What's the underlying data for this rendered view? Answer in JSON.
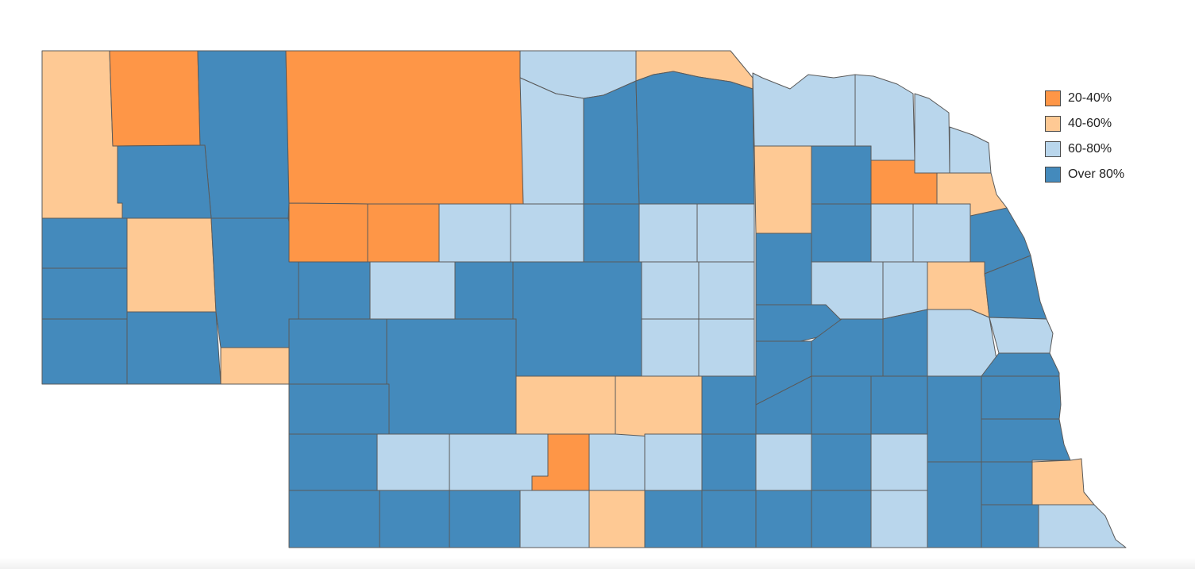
{
  "colors": {
    "c20_40": "#fe9647",
    "c40_60": "#fec994",
    "c60_80": "#b9d6ec",
    "over80": "#448abc"
  },
  "legend": {
    "items": [
      {
        "label": "20-40%",
        "color_key": "c20_40"
      },
      {
        "label": "40-60%",
        "color_key": "c40_60"
      },
      {
        "label": "60-80%",
        "color_key": "c60_80"
      },
      {
        "label": "Over 80%",
        "color_key": "over80"
      }
    ]
  },
  "counties": [
    {
      "name": "county-sioux",
      "cls": "c40_60"
    },
    {
      "name": "county-dawes",
      "cls": "c20_40"
    },
    {
      "name": "county-sheridan",
      "cls": "over80"
    },
    {
      "name": "county-cherry",
      "cls": "c20_40"
    },
    {
      "name": "county-keya-paha",
      "cls": "c60_80"
    },
    {
      "name": "county-boyd",
      "cls": "c40_60"
    },
    {
      "name": "county-box-butte",
      "cls": "over80"
    },
    {
      "name": "county-scotts-bluff",
      "cls": "over80"
    },
    {
      "name": "county-morrill",
      "cls": "c40_60"
    },
    {
      "name": "county-banner",
      "cls": "over80"
    },
    {
      "name": "county-kimball",
      "cls": "over80"
    },
    {
      "name": "county-cheyenne",
      "cls": "over80"
    },
    {
      "name": "county-garden",
      "cls": "over80"
    },
    {
      "name": "county-deuel",
      "cls": "c40_60"
    },
    {
      "name": "county-grant",
      "cls": "c20_40"
    },
    {
      "name": "county-hooker",
      "cls": "c20_40"
    },
    {
      "name": "county-arthur",
      "cls": "over80"
    },
    {
      "name": "county-keith",
      "cls": "over80"
    },
    {
      "name": "county-perkins",
      "cls": "over80"
    },
    {
      "name": "county-chase",
      "cls": "over80"
    },
    {
      "name": "county-dundy",
      "cls": "over80"
    },
    {
      "name": "county-hayes",
      "cls": "c40_60"
    },
    {
      "name": "county-hitchcock",
      "cls": "over80"
    },
    {
      "name": "county-brown",
      "cls": "c60_80"
    },
    {
      "name": "county-rock",
      "cls": "over80"
    },
    {
      "name": "county-holt",
      "cls": "over80"
    },
    {
      "name": "county-thomas",
      "cls": "c60_80"
    },
    {
      "name": "county-blaine",
      "cls": "c60_80"
    },
    {
      "name": "county-loup",
      "cls": "over80"
    },
    {
      "name": "county-garfield",
      "cls": "c60_80"
    },
    {
      "name": "county-wheeler",
      "cls": "c60_80"
    },
    {
      "name": "county-mcpherson",
      "cls": "c60_80"
    },
    {
      "name": "county-logan",
      "cls": "over80"
    },
    {
      "name": "county-custer",
      "cls": "over80"
    },
    {
      "name": "county-valley",
      "cls": "c60_80"
    },
    {
      "name": "county-greeley",
      "cls": "c60_80"
    },
    {
      "name": "county-sherman",
      "cls": "c60_80"
    },
    {
      "name": "county-howard",
      "cls": "c60_80"
    },
    {
      "name": "county-lincoln",
      "cls": "over80"
    },
    {
      "name": "county-frontier",
      "cls": "c60_80"
    },
    {
      "name": "county-gosper",
      "cls": "c60_80"
    },
    {
      "name": "county-furnas",
      "cls": "c60_80"
    },
    {
      "name": "county-red-willow",
      "cls": "over80"
    },
    {
      "name": "county-harlan",
      "cls": "c60_80"
    },
    {
      "name": "county-dawson",
      "cls": "c40_60"
    },
    {
      "name": "county-buffalo",
      "cls": "c40_60"
    },
    {
      "name": "county-phelps",
      "cls": "c20_40"
    },
    {
      "name": "county-kearney",
      "cls": "c60_80"
    },
    {
      "name": "county-franklin",
      "cls": "c40_60"
    },
    {
      "name": "county-knox",
      "cls": "c60_80"
    },
    {
      "name": "county-cedar",
      "cls": "c60_80"
    },
    {
      "name": "county-dixon",
      "cls": "c60_80"
    },
    {
      "name": "county-dakota",
      "cls": "c60_80"
    },
    {
      "name": "county-antelope",
      "cls": "c40_60"
    },
    {
      "name": "county-pierce",
      "cls": "over80"
    },
    {
      "name": "county-wayne",
      "cls": "c20_40"
    },
    {
      "name": "county-thurston",
      "cls": "c40_60"
    },
    {
      "name": "county-boone",
      "cls": "over80"
    },
    {
      "name": "county-madison",
      "cls": "over80"
    },
    {
      "name": "county-stanton",
      "cls": "c60_80"
    },
    {
      "name": "county-cuming",
      "cls": "c60_80"
    },
    {
      "name": "county-burt",
      "cls": "over80"
    },
    {
      "name": "county-platte",
      "cls": "c60_80"
    },
    {
      "name": "county-colfax",
      "cls": "c60_80"
    },
    {
      "name": "county-dodge",
      "cls": "c40_60"
    },
    {
      "name": "county-washington",
      "cls": "over80"
    },
    {
      "name": "county-nance",
      "cls": "over80"
    },
    {
      "name": "county-merrick",
      "cls": "over80"
    },
    {
      "name": "county-hall",
      "cls": "over80"
    },
    {
      "name": "county-hamilton",
      "cls": "over80"
    },
    {
      "name": "county-polk",
      "cls": "over80"
    },
    {
      "name": "county-york",
      "cls": "over80"
    },
    {
      "name": "county-butler",
      "cls": "over80"
    },
    {
      "name": "county-seward",
      "cls": "over80"
    },
    {
      "name": "county-saunders",
      "cls": "c60_80"
    },
    {
      "name": "county-douglas",
      "cls": "c60_80"
    },
    {
      "name": "county-sarpy",
      "cls": "over80"
    },
    {
      "name": "county-lancaster",
      "cls": "over80"
    },
    {
      "name": "county-cass",
      "cls": "over80"
    },
    {
      "name": "county-otoe",
      "cls": "over80"
    },
    {
      "name": "county-adams",
      "cls": "over80"
    },
    {
      "name": "county-clay",
      "cls": "c60_80"
    },
    {
      "name": "county-fillmore",
      "cls": "c60_80"
    },
    {
      "name": "county-saline",
      "cls": "over80"
    },
    {
      "name": "county-webster",
      "cls": "over80"
    },
    {
      "name": "county-nuckolls",
      "cls": "over80"
    },
    {
      "name": "county-thayer",
      "cls": "over80"
    },
    {
      "name": "county-jefferson",
      "cls": "over80"
    },
    {
      "name": "county-gage",
      "cls": "over80"
    },
    {
      "name": "county-johnson",
      "cls": "over80"
    },
    {
      "name": "county-nemaha",
      "cls": "c40_60"
    },
    {
      "name": "county-pawnee",
      "cls": "over80"
    },
    {
      "name": "county-richardson",
      "cls": "c60_80"
    },
    {
      "name": "county-saline-east",
      "cls": "c60_80"
    }
  ]
}
